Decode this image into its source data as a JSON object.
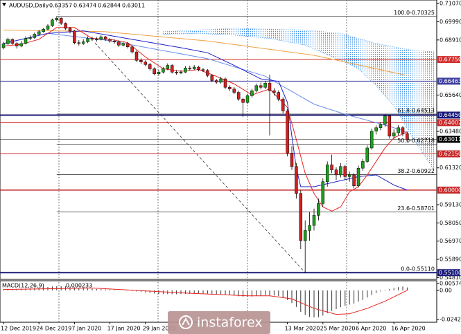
{
  "chart_data": {
    "type": "candlestick",
    "title": "AUDUSD,Daily",
    "ohlc_header": [
      0.63357,
      0.63474,
      0.62844,
      0.63011
    ],
    "watermark": "instaforex",
    "up_color": "#1e9e1e",
    "down_color": "#d22020",
    "categories": [
      "12 Dec 2019",
      null,
      null,
      null,
      null,
      null,
      null,
      null,
      "24 Dec 2019",
      null,
      null,
      null,
      null,
      null,
      null,
      null,
      "7 Jan 2020",
      null,
      null,
      null,
      null,
      null,
      null,
      null,
      "17 Jan 2020",
      null,
      null,
      null,
      null,
      null,
      null,
      null,
      "29 Jan 2020",
      null,
      null,
      null,
      null,
      null,
      null,
      null,
      null,
      null,
      null,
      null,
      null,
      null,
      null,
      null,
      null,
      null,
      null,
      null,
      null,
      null,
      null,
      null,
      null,
      null,
      null,
      null,
      null,
      null,
      null,
      null,
      "13 Mar 2020",
      null,
      null,
      null,
      null,
      null,
      null,
      null,
      "25 Mar 2020",
      null,
      null,
      null,
      null,
      null,
      null,
      null,
      "6 Apr 2020",
      null,
      null,
      null,
      null,
      null,
      null,
      null,
      "16 Apr 2020",
      null,
      null,
      null
    ],
    "open": [
      0.6845,
      0.6868,
      0.6895,
      0.687,
      0.6855,
      0.687,
      0.69,
      0.6905,
      0.6925,
      0.694,
      0.6955,
      0.6975,
      0.701,
      0.702,
      0.699,
      0.696,
      0.6945,
      0.6875,
      0.687,
      0.688,
      0.69,
      0.6895,
      0.6895,
      0.691,
      0.6895,
      0.6885,
      0.688,
      0.686,
      0.687,
      0.685,
      0.682,
      0.677,
      0.676,
      0.6745,
      0.672,
      0.669,
      0.67,
      0.672,
      0.674,
      0.67,
      0.6695,
      0.67,
      0.6725,
      0.672,
      0.673,
      0.6715,
      0.671,
      0.668,
      0.665,
      0.664,
      0.666,
      0.661,
      0.66,
      0.658,
      0.654,
      0.652,
      0.656,
      0.659,
      0.662,
      0.661,
      0.6635,
      0.659,
      0.658,
      0.654,
      0.647,
      0.622,
      0.614,
      0.598,
      0.57,
      0.576,
      0.579,
      0.585,
      0.592,
      0.605,
      0.615,
      0.612,
      0.609,
      0.614,
      0.608,
      0.609,
      0.6025,
      0.613,
      0.617,
      0.625,
      0.635,
      0.637,
      0.639,
      0.644,
      0.632,
      0.634,
      0.637,
      0.63357
    ],
    "high": [
      0.688,
      0.6905,
      0.69,
      0.6878,
      0.6885,
      0.6912,
      0.6918,
      0.6935,
      0.6952,
      0.6962,
      0.6985,
      0.7018,
      0.7032,
      0.7025,
      0.6995,
      0.6968,
      0.695,
      0.689,
      0.6895,
      0.6912,
      0.691,
      0.6908,
      0.6918,
      0.6915,
      0.6902,
      0.6895,
      0.6888,
      0.6882,
      0.6878,
      0.6858,
      0.6828,
      0.6782,
      0.677,
      0.6755,
      0.6728,
      0.6712,
      0.673,
      0.6752,
      0.6748,
      0.6712,
      0.6712,
      0.6735,
      0.6738,
      0.6742,
      0.6738,
      0.6725,
      0.6718,
      0.6688,
      0.666,
      0.6672,
      0.6668,
      0.6622,
      0.6612,
      0.659,
      0.6548,
      0.6572,
      0.6602,
      0.6632,
      0.6638,
      0.6648,
      0.6685,
      0.6605,
      0.6592,
      0.6552,
      0.648,
      0.626,
      0.616,
      0.6,
      0.582,
      0.587,
      0.589,
      0.595,
      0.607,
      0.617,
      0.621,
      0.6135,
      0.616,
      0.615,
      0.611,
      0.61,
      0.6145,
      0.6185,
      0.6265,
      0.6365,
      0.6385,
      0.6405,
      0.645,
      0.6445,
      0.636,
      0.6385,
      0.638,
      0.63474
    ],
    "low": [
      0.6835,
      0.686,
      0.6862,
      0.684,
      0.6848,
      0.6865,
      0.689,
      0.6898,
      0.6918,
      0.6935,
      0.695,
      0.6968,
      0.7,
      0.698,
      0.695,
      0.693,
      0.6865,
      0.6858,
      0.6862,
      0.6872,
      0.6885,
      0.6882,
      0.6888,
      0.6885,
      0.6875,
      0.6868,
      0.685,
      0.6852,
      0.684,
      0.681,
      0.676,
      0.6748,
      0.6735,
      0.671,
      0.6682,
      0.668,
      0.6692,
      0.6712,
      0.6692,
      0.6685,
      0.6688,
      0.6695,
      0.671,
      0.6712,
      0.6705,
      0.67,
      0.667,
      0.664,
      0.663,
      0.6632,
      0.66,
      0.6588,
      0.657,
      0.653,
      0.6435,
      0.651,
      0.6548,
      0.658,
      0.6598,
      0.66,
      0.6325,
      0.656,
      0.6528,
      0.6455,
      0.62,
      0.612,
      0.595,
      0.565,
      0.551,
      0.57,
      0.576,
      0.582,
      0.59,
      0.602,
      0.61,
      0.606,
      0.6075,
      0.606,
      0.605,
      0.601,
      0.6015,
      0.6115,
      0.616,
      0.624,
      0.633,
      0.6355,
      0.6375,
      0.6305,
      0.63,
      0.6325,
      0.632,
      0.62844
    ],
    "close": [
      0.6868,
      0.6895,
      0.687,
      0.6855,
      0.687,
      0.69,
      0.6905,
      0.6925,
      0.694,
      0.6955,
      0.6975,
      0.701,
      0.702,
      0.699,
      0.696,
      0.6945,
      0.6875,
      0.687,
      0.688,
      0.69,
      0.6895,
      0.6895,
      0.691,
      0.6895,
      0.6885,
      0.688,
      0.686,
      0.687,
      0.685,
      0.682,
      0.677,
      0.676,
      0.6745,
      0.672,
      0.669,
      0.67,
      0.672,
      0.674,
      0.67,
      0.6695,
      0.67,
      0.6725,
      0.672,
      0.673,
      0.6715,
      0.671,
      0.668,
      0.665,
      0.664,
      0.666,
      0.661,
      0.66,
      0.658,
      0.654,
      0.652,
      0.656,
      0.659,
      0.662,
      0.661,
      0.6635,
      0.659,
      0.658,
      0.654,
      0.647,
      0.622,
      0.614,
      0.598,
      0.57,
      0.576,
      0.579,
      0.585,
      0.592,
      0.605,
      0.615,
      0.612,
      0.609,
      0.614,
      0.608,
      0.609,
      0.6025,
      0.613,
      0.617,
      0.625,
      0.635,
      0.637,
      0.639,
      0.644,
      0.632,
      0.634,
      0.637,
      0.63357,
      0.63011
    ],
    "lines": [
      {
        "color": "#f0a040",
        "x": [
          0,
          23,
          46,
          70,
          91
        ],
        "values": [
          0.695,
          0.694,
          0.6885,
          0.68,
          0.668
        ]
      },
      {
        "color": "#6a8ef0",
        "x": [
          10,
          23,
          46,
          59,
          70,
          77,
          87,
          91
        ],
        "values": [
          0.693,
          0.689,
          0.678,
          0.6676,
          0.651,
          0.645,
          0.6378,
          0.6345
        ]
      },
      {
        "color": "#1c1cc8",
        "x": [
          0,
          5,
          10,
          18,
          30,
          40,
          46,
          52,
          58,
          62,
          64,
          65,
          66,
          67,
          70,
          80,
          84,
          88,
          91
        ],
        "values": [
          0.687,
          0.69,
          0.693,
          0.6945,
          0.689,
          0.6845,
          0.6815,
          0.674,
          0.666,
          0.6645,
          0.652,
          0.632,
          0.613,
          0.602,
          0.602,
          0.608,
          0.609,
          0.603,
          0.6
        ]
      },
      {
        "color": "#e8231f",
        "x": [
          0,
          4,
          8,
          12,
          16,
          20,
          24,
          28,
          32,
          36,
          40,
          44,
          48,
          52,
          56,
          60,
          64,
          66,
          68,
          70,
          72,
          74,
          76,
          78,
          80,
          82,
          84,
          86,
          88,
          91
        ],
        "values": [
          0.6855,
          0.6865,
          0.6895,
          0.6965,
          0.6965,
          0.69,
          0.6895,
          0.6875,
          0.679,
          0.672,
          0.6705,
          0.6715,
          0.6675,
          0.663,
          0.6565,
          0.66,
          0.649,
          0.63,
          0.61,
          0.598,
          0.59,
          0.5875,
          0.59,
          0.599,
          0.602,
          0.609,
          0.617,
          0.625,
          0.631,
          0.6345
        ]
      }
    ],
    "cloud": {
      "color": "#3a8ee6",
      "x": [
        36,
        44,
        52,
        60,
        68,
        76,
        80,
        84,
        88,
        92,
        97
      ],
      "upper": [
        0.694,
        0.695,
        0.696,
        0.6955,
        0.695,
        0.693,
        0.69,
        0.687,
        0.685,
        0.683,
        0.682
      ],
      "lower": [
        0.6925,
        0.693,
        0.692,
        0.69,
        0.686,
        0.677,
        0.672,
        0.662,
        0.65,
        0.632,
        0.612
      ]
    },
    "levels": [
      {
        "value": 0.6775,
        "label": "0.67750",
        "color": "#d32f2f",
        "width": 1
      },
      {
        "value": 0.66463,
        "label": "0.66463",
        "color": "#3f3f9f",
        "width": 1
      },
      {
        "value": 0.6445,
        "label": "0.64450",
        "color": "#1a1a7a",
        "width": 2
      },
      {
        "value": 0.64002,
        "label": "0.64002",
        "color": "#c62828",
        "width": 1
      },
      {
        "value": 0.63011,
        "label": "0.63011",
        "color": "#000000",
        "width": 0.5
      },
      {
        "value": 0.6215,
        "label": "0.62150",
        "color": "#c62828",
        "width": 1
      },
      {
        "value": 0.6,
        "label": "0.60000",
        "color": "#c62828",
        "width": 1.5
      },
      {
        "value": 0.551,
        "label": "0.55100",
        "color": "#1a1a7a",
        "width": 2
      }
    ],
    "fibonacci": [
      {
        "value": 0.70325,
        "label": "100.0-0.70325"
      },
      {
        "value": 0.64513,
        "label": "61.8-0.64513"
      },
      {
        "value": 0.62718,
        "label": "50.0-0.62718"
      },
      {
        "value": 0.60922,
        "label": "38.2-0.60922"
      },
      {
        "value": 0.58701,
        "label": "23.6-0.58701"
      },
      {
        "value": 0.5511,
        "label": "0.0-0.55110"
      }
    ],
    "ylim": [
      0.547,
      0.712
    ],
    "yticks": [
      {
        "value": 0.7107,
        "label": "0.71070"
      },
      {
        "value": 0.6999,
        "label": "0.69990"
      },
      {
        "value": 0.6891,
        "label": "0.68910"
      },
      {
        "value": 0.6564,
        "label": "0.65640"
      },
      {
        "value": 0.6348,
        "label": "0.63480"
      },
      {
        "value": 0.6132,
        "label": "0.61320"
      },
      {
        "value": 0.5913,
        "label": "0.59130"
      },
      {
        "value": 0.5805,
        "label": "0.58050"
      },
      {
        "value": 0.5697,
        "label": "0.56970"
      },
      {
        "value": 0.5589,
        "label": "0.55890"
      },
      {
        "value": 0.5481,
        "label": "0.54810"
      }
    ],
    "macd": {
      "title": "MACD(12,26,9)",
      "signal_readout": 0.000233,
      "values": [
        0.001,
        0.0012,
        0.0013,
        0.0013,
        0.0014,
        0.0016,
        0.0018,
        0.002,
        0.0023,
        0.0026,
        0.0029,
        0.0033,
        0.0036,
        0.0036,
        0.0034,
        0.0032,
        0.0026,
        0.0021,
        0.0018,
        0.0016,
        0.0014,
        0.0012,
        0.0011,
        0.0009,
        0.0007,
        0.0005,
        0.0002,
        0,
        -0.0002,
        -0.0005,
        -0.0009,
        -0.0013,
        -0.0017,
        -0.0021,
        -0.0026,
        -0.003,
        -0.0031,
        -0.0031,
        -0.0032,
        -0.0032,
        -0.0031,
        -0.0029,
        -0.0028,
        -0.0026,
        -0.0025,
        -0.0025,
        -0.0027,
        -0.003,
        -0.0033,
        -0.0034,
        -0.0037,
        -0.004,
        -0.0044,
        -0.0049,
        -0.0054,
        -0.0054,
        -0.0051,
        -0.0047,
        -0.0043,
        -0.0039,
        -0.0041,
        -0.0043,
        -0.0048,
        -0.0058,
        -0.008,
        -0.0105,
        -0.0138,
        -0.018,
        -0.0205,
        -0.0222,
        -0.0225,
        -0.0224,
        -0.021,
        -0.019,
        -0.0172,
        -0.0156,
        -0.014,
        -0.0128,
        -0.0118,
        -0.011,
        -0.0095,
        -0.008,
        -0.006,
        -0.0038,
        -0.0022,
        -0.0008,
        0.0005,
        0.0012,
        0.002,
        0.0028,
        0.0033,
        0.0025
      ],
      "signal": {
        "color": "#e8231f",
        "x": [
          0,
          20,
          40,
          55,
          60,
          65,
          70,
          75,
          78,
          82,
          86,
          91
        ],
        "values": [
          0.0008,
          0.002,
          -0.002,
          -0.0045,
          -0.0045,
          -0.007,
          -0.015,
          -0.02,
          -0.0195,
          -0.015,
          -0.009,
          0
        ]
      },
      "ylim": [
        -0.026,
        0.0075
      ],
      "yticks": [
        0.005746,
        {
          "value": 0,
          "label": "0.00"
        },
        -0.024242
      ]
    }
  }
}
